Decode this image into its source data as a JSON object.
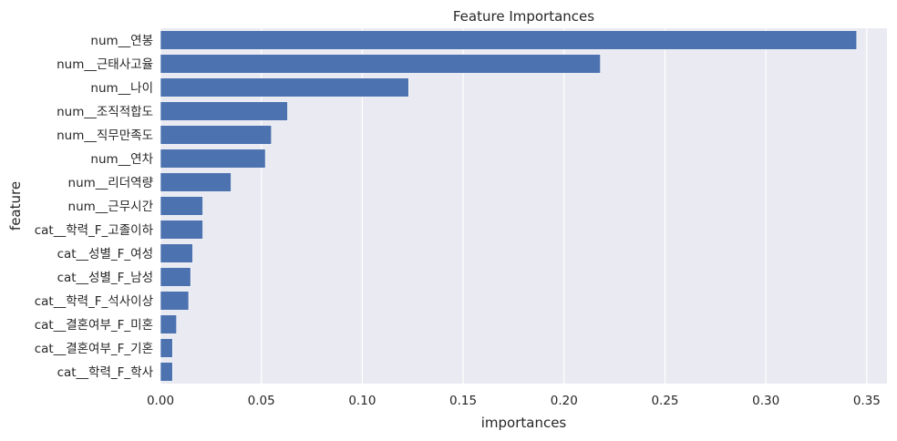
{
  "chart_data": {
    "type": "bar",
    "orientation": "horizontal",
    "title": "Feature Importances",
    "xlabel": "importances",
    "ylabel": "feature",
    "xlim": [
      0,
      0.36
    ],
    "xticks": [
      "0.00",
      "0.05",
      "0.10",
      "0.15",
      "0.20",
      "0.25",
      "0.30",
      "0.35"
    ],
    "grid": true,
    "bar_color": "#4c72b0",
    "background_color": "#eaeaf2",
    "categories": [
      "num__연봉",
      "num__근태사고율",
      "num__나이",
      "num__조직적합도",
      "num__직무만족도",
      "num__연차",
      "num__리더역량",
      "num__근무시간",
      "cat__학력_F_고졸이하",
      "cat__성별_F_여성",
      "cat__성별_F_남성",
      "cat__학력_F_석사이상",
      "cat__결혼여부_F_미혼",
      "cat__결혼여부_F_기혼",
      "cat__학력_F_학사"
    ],
    "values": [
      0.345,
      0.218,
      0.123,
      0.063,
      0.055,
      0.052,
      0.035,
      0.021,
      0.021,
      0.016,
      0.015,
      0.014,
      0.008,
      0.006,
      0.006
    ]
  }
}
